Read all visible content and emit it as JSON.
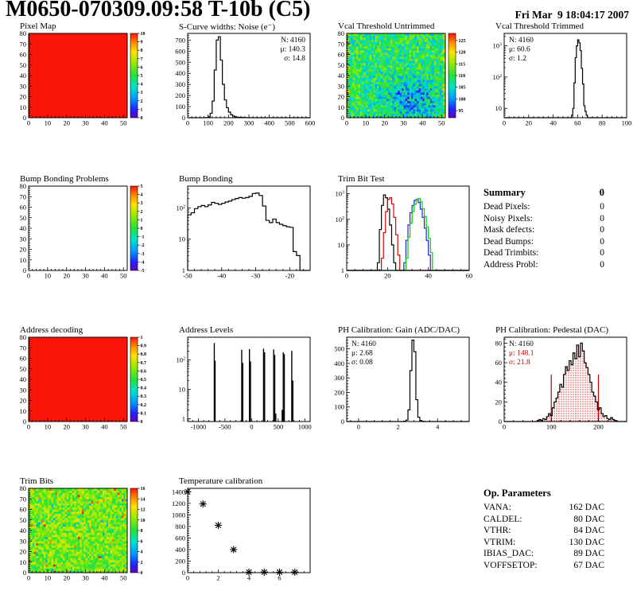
{
  "header": {
    "title": "M0650-070309.09:58 T-10b (C5)",
    "date": "Fri Mar  9 18:04:17 2007"
  },
  "summary": {
    "title": "Summary",
    "total": "0",
    "rows": [
      {
        "label": "Dead Pixels:",
        "value": "0"
      },
      {
        "label": "Noisy Pixels:",
        "value": "0"
      },
      {
        "label": "Mask defects:",
        "value": "0"
      },
      {
        "label": "Dead Bumps:",
        "value": "0"
      },
      {
        "label": "Dead Trimbits:",
        "value": "0"
      },
      {
        "label": "Address Probl:",
        "value": "0"
      }
    ]
  },
  "op_parameters": {
    "title": "Op. Parameters",
    "rows": [
      {
        "label": "VANA:",
        "value": "162 DAC"
      },
      {
        "label": "CALDEL:",
        "value": "80 DAC"
      },
      {
        "label": "VTHR:",
        "value": "84 DAC"
      },
      {
        "label": "VTRIM:",
        "value": "130 DAC"
      },
      {
        "label": "IBIAS_DAC:",
        "value": "89 DAC"
      },
      {
        "label": "VOFFSETOP:",
        "value": "67 DAC"
      }
    ]
  },
  "colors": {
    "black": "#000000",
    "red": "#cc0000",
    "green": "#00cc00",
    "blue": "#2222dd",
    "heatmap_red": "#fa140a"
  },
  "chart_data": [
    {
      "id": "pixel-map",
      "title": "Pixel Map",
      "type": "heatmap",
      "xlim": [
        0,
        52
      ],
      "ylim": [
        0,
        80
      ],
      "xticks": [
        0,
        10,
        20,
        30,
        40,
        50
      ],
      "yticks": [
        0,
        10,
        20,
        30,
        40,
        50,
        60,
        70,
        80
      ],
      "uniform_value": 10,
      "zlim": [
        0,
        10
      ],
      "zticks": [
        "0",
        "1",
        "2",
        "3",
        "4",
        "5",
        "6",
        "7",
        "8",
        "9",
        "10"
      ],
      "colorbar": true
    },
    {
      "id": "scurve-noise",
      "title": "S-Curve widths: Noise (e⁻)",
      "type": "hist",
      "xlim": [
        0,
        600
      ],
      "ylim": [
        0,
        760
      ],
      "xticks": [
        0,
        100,
        200,
        300,
        400,
        500,
        600
      ],
      "yticks": [
        0,
        100,
        200,
        300,
        400,
        500,
        600,
        700
      ],
      "bins": {
        "x0": 90,
        "binw": 10,
        "values": [
          2,
          8,
          40,
          150,
          430,
          700,
          730,
          520,
          300,
          160,
          90,
          50,
          28,
          15,
          8,
          5,
          3,
          4,
          2,
          1
        ]
      },
      "stats": {
        "pos": "right",
        "lines": [
          {
            "text": "N: 4160",
            "color": "#000000"
          },
          {
            "text": "μ: 140.3",
            "color": "#000000"
          },
          {
            "text": "σ: 14.8",
            "color": "#000000"
          }
        ]
      }
    },
    {
      "id": "vcal-threshold-untrimmed",
      "title": "Vcal Threshold Untrimmed",
      "type": "heatmap",
      "xlim": [
        0,
        52
      ],
      "ylim": [
        0,
        80
      ],
      "xticks": [
        0,
        10,
        20,
        30,
        40,
        50
      ],
      "yticks": [
        0,
        10,
        20,
        30,
        40,
        50,
        60,
        70,
        80
      ],
      "noise": {
        "seed": 17,
        "mean": 109,
        "spread": 7,
        "edges": true,
        "blob": {
          "x": 34,
          "y": 18,
          "rx": 9,
          "ry": 12,
          "dz": -9
        }
      },
      "zlim": [
        92,
        128
      ],
      "zticks": [
        "95",
        "100",
        "105",
        "110",
        "115",
        "120",
        "125"
      ],
      "colorbar": true
    },
    {
      "id": "vcal-threshold-trimmed",
      "title": "Vcal Threshold Trimmed",
      "type": "hist",
      "logy": true,
      "xlim": [
        0,
        100
      ],
      "ylim": [
        5,
        2500
      ],
      "xticks": [
        0,
        20,
        40,
        60,
        80,
        100
      ],
      "bins": {
        "x0": 55,
        "binw": 1,
        "values": [
          6,
          10,
          65,
          420,
          1000,
          1550,
          1250,
          700,
          190,
          60,
          12,
          8,
          6
        ]
      },
      "stats": {
        "pos": "left",
        "lines": [
          {
            "text": "N: 4160",
            "color": "#000000"
          },
          {
            "text": "μ: 60.6",
            "color": "#000000"
          },
          {
            "text": "σ: 1.2",
            "color": "#000000"
          }
        ]
      }
    },
    {
      "id": "bump-bonding-problems",
      "title": "Bump Bonding Problems",
      "type": "heatmap",
      "empty": true,
      "xlim": [
        0,
        52
      ],
      "ylim": [
        0,
        80
      ],
      "xticks": [
        0,
        10,
        20,
        30,
        40,
        50
      ],
      "yticks": [
        0,
        10,
        20,
        30,
        40,
        50,
        60,
        70,
        80
      ],
      "zlim": [
        -5,
        5
      ],
      "zticks": [
        "-5",
        "-4",
        "-3",
        "-2",
        "-1",
        "0",
        "1",
        "2",
        "3",
        "4",
        "5"
      ],
      "colorbar": true
    },
    {
      "id": "bump-bonding",
      "title": "Bump Bonding",
      "type": "hist",
      "logy": true,
      "xlim": [
        -50,
        -14
      ],
      "ylim": [
        1,
        500
      ],
      "xticks": [
        -50,
        -40,
        -30,
        -20
      ],
      "bins": {
        "x0": -50,
        "binw": 1,
        "values": [
          60,
          70,
          95,
          110,
          120,
          110,
          125,
          150,
          140,
          130,
          140,
          155,
          165,
          185,
          200,
          215,
          205,
          215,
          235,
          290,
          300,
          250,
          115,
          40,
          34,
          44,
          34,
          30,
          27,
          25,
          24,
          4,
          3
        ]
      }
    },
    {
      "id": "trim-bit-test",
      "title": "Trim Bit Test",
      "type": "multihist",
      "logy": true,
      "xlim": [
        0,
        60
      ],
      "ylim": [
        1,
        2000
      ],
      "xticks": [
        0,
        20,
        40,
        60
      ],
      "series": [
        {
          "name": "trim-bit-0",
          "color": "#000000",
          "x0": 15,
          "binw": 1,
          "values": [
            2,
            40,
            350,
            900,
            700,
            250,
            60,
            10,
            2
          ]
        },
        {
          "name": "trim-bit-1",
          "color": "#dd0000",
          "x0": 17,
          "binw": 1,
          "values": [
            3,
            30,
            200,
            600,
            700,
            400,
            120,
            25,
            4
          ]
        },
        {
          "name": "trim-bit-2",
          "color": "#2222dd",
          "x0": 28,
          "binw": 1,
          "values": [
            2,
            15,
            60,
            180,
            350,
            550,
            600,
            450,
            250,
            120,
            45,
            15,
            4
          ]
        },
        {
          "name": "trim-bit-3",
          "color": "#00cc00",
          "x0": 29,
          "binw": 1,
          "values": [
            3,
            20,
            70,
            200,
            380,
            620,
            650,
            480,
            260,
            130,
            50,
            18,
            5
          ]
        }
      ]
    },
    {
      "id": "address-decoding",
      "title": "Address decoding",
      "type": "heatmap",
      "xlim": [
        0,
        52
      ],
      "ylim": [
        0,
        80
      ],
      "xticks": [
        0,
        10,
        20,
        30,
        40,
        50
      ],
      "yticks": [
        0,
        10,
        20,
        30,
        40,
        50,
        60,
        70,
        80
      ],
      "uniform_value": 1,
      "zlim": [
        0,
        1
      ],
      "zticks": [
        "0",
        "0.1",
        "0.2",
        "0.3",
        "0.4",
        "0.5",
        "0.6",
        "0.7",
        "0.8",
        "0.9",
        "1"
      ],
      "colorbar": true
    },
    {
      "id": "address-levels",
      "title": "Address Levels",
      "type": "spikes",
      "logy": true,
      "xlim": [
        -1200,
        1100
      ],
      "ylim": [
        0.8,
        600
      ],
      "xticks": [
        -1000,
        -500,
        0,
        500,
        1000
      ],
      "spikes": [
        [
          -700,
          380
        ],
        [
          -685,
          95
        ],
        [
          -185,
          225
        ],
        [
          -165,
          80
        ],
        [
          -40,
          235
        ],
        [
          -20,
          90
        ],
        [
          225,
          245
        ],
        [
          245,
          185
        ],
        [
          415,
          230
        ],
        [
          435,
          150
        ],
        [
          455,
          1.5
        ],
        [
          575,
          2
        ],
        [
          595,
          185
        ],
        [
          615,
          160
        ],
        [
          755,
          205
        ],
        [
          775,
          20
        ]
      ]
    },
    {
      "id": "ph-calibration-gain",
      "title": "PH Calibration: Gain (ADC/DAC)",
      "type": "hist",
      "xlim": [
        -0.6,
        5.6
      ],
      "ylim": [
        0,
        580
      ],
      "xticks": [
        0,
        2,
        4
      ],
      "yticks": [
        0,
        100,
        200,
        300,
        400,
        500
      ],
      "bins": {
        "x0": 2.3,
        "binw": 0.1,
        "values": [
          2,
          10,
          80,
          350,
          560,
          480,
          150,
          30,
          6,
          2
        ]
      },
      "stats": {
        "pos": "left",
        "lines": [
          {
            "text": "N: 4160",
            "color": "#000000"
          },
          {
            "text": "μ: 2.68",
            "color": "#000000"
          },
          {
            "text": "σ: 0.08",
            "color": "#000000"
          }
        ]
      }
    },
    {
      "id": "ph-calibration-pedestal",
      "title": "PH Calibration: Pedestal (DAC)",
      "type": "hist",
      "xlim": [
        0,
        260
      ],
      "ylim": [
        0,
        86
      ],
      "xticks": [
        0,
        100,
        200
      ],
      "yticks": [
        0,
        20,
        40,
        60,
        80
      ],
      "fill": "dots",
      "vlines": {
        "x": [
          100,
          200
        ],
        "top": 48,
        "color": "#cc0000"
      },
      "bins": {
        "x0": 70,
        "binw": 4,
        "values": [
          1,
          2,
          1,
          3,
          2,
          5,
          8,
          6,
          14,
          20,
          24,
          30,
          38,
          35,
          48,
          56,
          52,
          62,
          58,
          70,
          64,
          78,
          66,
          80,
          72,
          60,
          55,
          48,
          40,
          30,
          26,
          20,
          12,
          14,
          8,
          5,
          6,
          3,
          2,
          4,
          2,
          1
        ]
      },
      "stats": {
        "pos": "left",
        "lines": [
          {
            "text": "N: 4160",
            "color": "#000000"
          },
          {
            "text": "μ: 148.1",
            "color": "#cc0000"
          },
          {
            "text": "σ: 21.8",
            "color": "#cc0000"
          }
        ]
      }
    },
    {
      "id": "trim-bits",
      "title": "Trim Bits",
      "type": "heatmap",
      "xlim": [
        0,
        52
      ],
      "ylim": [
        0,
        80
      ],
      "xticks": [
        0,
        10,
        20,
        30,
        40,
        50
      ],
      "yticks": [
        0,
        10,
        20,
        30,
        40,
        50,
        60,
        70,
        80
      ],
      "noise": {
        "seed": 29,
        "mean": 9.6,
        "spread": 2.4,
        "outliers": true
      },
      "zlim": [
        0,
        16
      ],
      "zticks": [
        "0",
        "2",
        "4",
        "6",
        "8",
        "10",
        "12",
        "14",
        "16"
      ],
      "colorbar": true
    },
    {
      "id": "temperature-calibration",
      "title": "Temperature calibration",
      "type": "scatter",
      "xlim": [
        0,
        8
      ],
      "ylim": [
        0,
        1460
      ],
      "xticks": [
        0,
        2,
        4,
        6
      ],
      "yticks": [
        0,
        200,
        400,
        600,
        800,
        1000,
        1200,
        1400
      ],
      "points": [
        [
          0,
          1400
        ],
        [
          1,
          1190
        ],
        [
          2,
          820
        ],
        [
          3,
          400
        ],
        [
          4,
          8
        ],
        [
          5,
          8
        ],
        [
          6,
          8
        ],
        [
          7,
          8
        ]
      ]
    }
  ]
}
